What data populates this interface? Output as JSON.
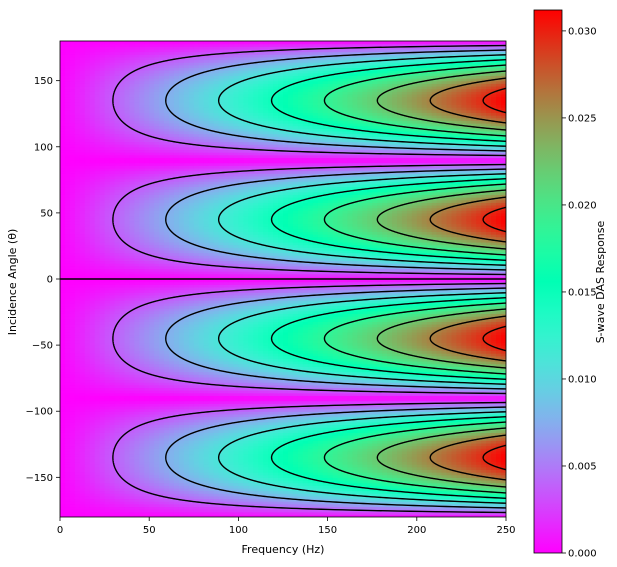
{
  "chart_data": {
    "type": "heatmap",
    "title": "",
    "xlabel": "Frequency (Hz)",
    "ylabel": "Incidence Angle (θ)",
    "xlim": [
      0,
      250
    ],
    "ylim": [
      -180,
      180
    ],
    "xticks": [
      0,
      50,
      100,
      150,
      200,
      250
    ],
    "yticks": [
      -150,
      -100,
      -50,
      0,
      50,
      100,
      150
    ],
    "colormap": "rainbow",
    "function": "z = k * f * |sin(2*theta)|",
    "z_max": 0.0312,
    "contour_levels": [
      0.0037,
      0.0074,
      0.0111,
      0.0148,
      0.0185,
      0.0222,
      0.0259,
      0.0296
    ],
    "contour_color": "#000000",
    "colorbar": {
      "label": "S-wave DAS Response",
      "range": [
        0.0,
        0.0312
      ],
      "ticks": [
        "0.000",
        "0.005",
        "0.010",
        "0.015",
        "0.020",
        "0.025",
        "0.030"
      ],
      "tick_values": [
        0.0,
        0.005,
        0.01,
        0.015,
        0.02,
        0.025,
        0.03
      ]
    }
  }
}
